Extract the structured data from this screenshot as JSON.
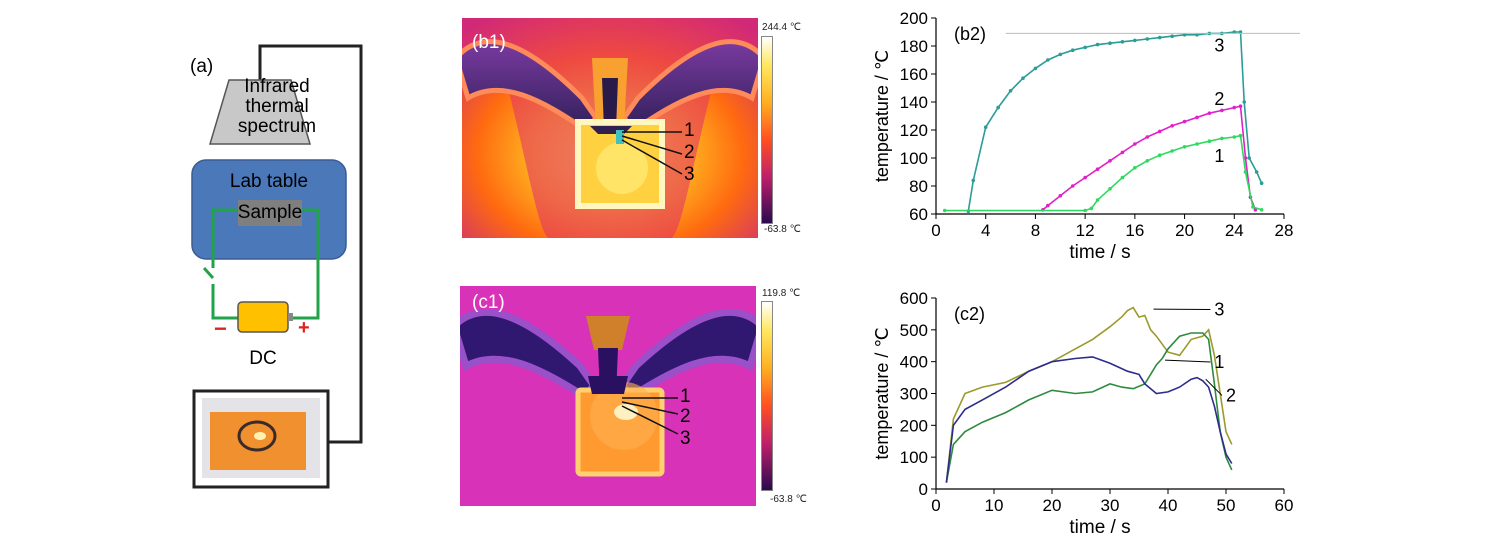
{
  "panel_a": {
    "label": "(a)",
    "camera_text": [
      "Infrared",
      "thermal",
      "spectrum"
    ],
    "table_label": "Lab table",
    "sample_label": "Sample",
    "dc_label": "DC",
    "minus": "−",
    "plus": "+",
    "colors": {
      "table": "#4a78b8",
      "camera": "#c8c8c8",
      "dc": "#ffc000",
      "wire": "#21a34a",
      "sample": "#7f7f7f",
      "screen": "#f0902e"
    }
  },
  "panel_b1": {
    "label": "(b1)",
    "scale_max": "244.4 ℃",
    "scale_min": "-63.8 ℃",
    "points": [
      "1",
      "2",
      "3"
    ]
  },
  "panel_c1": {
    "label": "(c1)",
    "scale_max": "119.8 ℃",
    "scale_min": "-63.8 ℃",
    "points": [
      "1",
      "2",
      "3"
    ]
  },
  "chart_data": [
    {
      "id": "b2",
      "type": "line",
      "label": "(b2)",
      "xlabel": "time / s",
      "ylabel": "temperature / ℃",
      "xlim": [
        0,
        28
      ],
      "ylim": [
        60,
        200
      ],
      "xticks": [
        0,
        4,
        8,
        12,
        16,
        20,
        24,
        28
      ],
      "yticks": [
        60,
        80,
        100,
        120,
        140,
        160,
        180,
        200
      ],
      "series": [
        {
          "name": "3",
          "color": "#2a9d96",
          "x": [
            2.6,
            3,
            4,
            5,
            6,
            7,
            8,
            9,
            10,
            11,
            12,
            13,
            14,
            15,
            16,
            17,
            18,
            19,
            20,
            21,
            22,
            23,
            24,
            24.5,
            24.8,
            25.2,
            25.8,
            26.2
          ],
          "y": [
            62,
            84,
            122,
            136,
            148,
            157,
            164,
            170,
            174,
            177,
            179,
            181,
            182,
            183,
            184,
            185,
            186,
            187,
            188,
            188,
            189,
            189,
            190,
            190,
            140,
            100,
            90,
            82
          ]
        },
        {
          "name": "2",
          "color": "#e020c8",
          "x": [
            8.6,
            9,
            10,
            11,
            12,
            13,
            14,
            15,
            16,
            17,
            18,
            19,
            20,
            21,
            22,
            23,
            24,
            24.5,
            24.9,
            25.3,
            25.7
          ],
          "y": [
            63,
            66,
            73,
            80,
            86,
            92,
            98,
            104,
            110,
            115,
            119,
            123,
            126,
            129,
            132,
            134,
            136,
            137,
            100,
            72,
            63
          ]
        },
        {
          "name": "1",
          "color": "#30d860",
          "x": [
            0.7,
            12,
            12.5,
            13,
            14,
            15,
            16,
            17,
            18,
            19,
            20,
            21,
            22,
            23,
            24,
            24.5,
            24.9,
            25.5,
            26.2
          ],
          "y": [
            62.5,
            62.5,
            64,
            70,
            78,
            86,
            93,
            98,
            102,
            105,
            108,
            110,
            112,
            114,
            115,
            116,
            90,
            65,
            63
          ]
        }
      ]
    },
    {
      "id": "c2",
      "type": "line",
      "label": "(c2)",
      "xlabel": "time / s",
      "ylabel": "temperature / ℃",
      "xlim": [
        0,
        60
      ],
      "ylim": [
        0,
        600
      ],
      "xticks": [
        0,
        10,
        20,
        30,
        40,
        50,
        60
      ],
      "yticks": [
        0,
        100,
        200,
        300,
        400,
        500,
        600
      ],
      "series": [
        {
          "name": "3",
          "color": "#9b9a2c",
          "x": [
            1.8,
            3,
            5,
            8,
            12,
            16,
            20,
            24,
            27,
            30,
            32,
            33,
            34,
            35,
            36,
            37,
            38,
            40,
            42,
            44,
            46,
            47,
            48,
            49,
            50,
            51
          ],
          "y": [
            20,
            220,
            300,
            320,
            335,
            370,
            400,
            440,
            470,
            510,
            540,
            560,
            570,
            540,
            545,
            500,
            480,
            430,
            420,
            470,
            480,
            500,
            420,
            300,
            180,
            140
          ]
        },
        {
          "name": "1",
          "color": "#2e8b3e",
          "x": [
            1.8,
            3,
            5,
            8,
            12,
            16,
            20,
            24,
            27,
            30,
            32,
            34,
            36,
            37,
            38,
            39,
            40,
            42,
            44,
            46,
            47,
            48,
            49,
            50,
            51
          ],
          "y": [
            20,
            140,
            180,
            210,
            240,
            280,
            310,
            300,
            305,
            330,
            320,
            315,
            330,
            360,
            390,
            410,
            440,
            480,
            490,
            490,
            470,
            330,
            180,
            100,
            60
          ]
        },
        {
          "name": "2",
          "color": "#2d2c8c",
          "x": [
            1.8,
            3,
            5,
            8,
            12,
            16,
            20,
            24,
            27,
            30,
            33,
            35,
            36,
            38,
            40,
            42,
            44,
            45,
            46,
            47,
            48,
            49,
            50,
            51
          ],
          "y": [
            20,
            200,
            250,
            280,
            320,
            370,
            400,
            410,
            415,
            395,
            370,
            360,
            330,
            300,
            305,
            320,
            345,
            350,
            340,
            320,
            260,
            180,
            110,
            80
          ]
        }
      ]
    }
  ]
}
